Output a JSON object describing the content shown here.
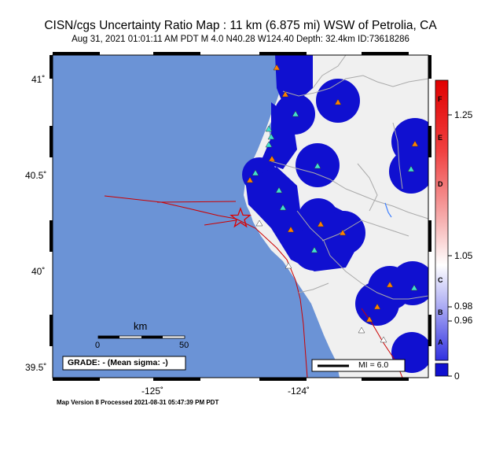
{
  "title": "CISN/cgs Uncertainty Ratio Map : 11 km (6.875 mi) WSW of Petrolia, CA",
  "subtitle": "Aug 31, 2021 01:01:11 AM PDT   M 4.0   N40.28 W124.40   Depth: 32.4km   ID:73618286",
  "footer": "Map Version 8 Processed 2021-08-31 05:47:39 PM PDT",
  "lat_labels": [
    "41˚",
    "40.5˚",
    "40˚",
    "39.5˚"
  ],
  "lon_labels": [
    "-125˚",
    "-124˚"
  ],
  "scalebar": {
    "unit": "km",
    "start": "0",
    "end": "50"
  },
  "grade_text": "GRADE: - (Mean sigma: -)",
  "mi_legend": "MI = 6.0",
  "colorbar": {
    "letters": [
      "F",
      "E",
      "D",
      "C",
      "B",
      "A"
    ],
    "values": [
      "1.25",
      "1.05",
      "0.98",
      "0.96",
      "0"
    ]
  },
  "colors": {
    "ocean": "#6b93d6",
    "land": "#f0f0f0",
    "uncertainty_blue": "#1010d0",
    "station_orange": "#ff7f00",
    "station_cyan": "#40e0d0",
    "fault_red": "#cc0000",
    "epicenter_star": "#dd0000"
  }
}
